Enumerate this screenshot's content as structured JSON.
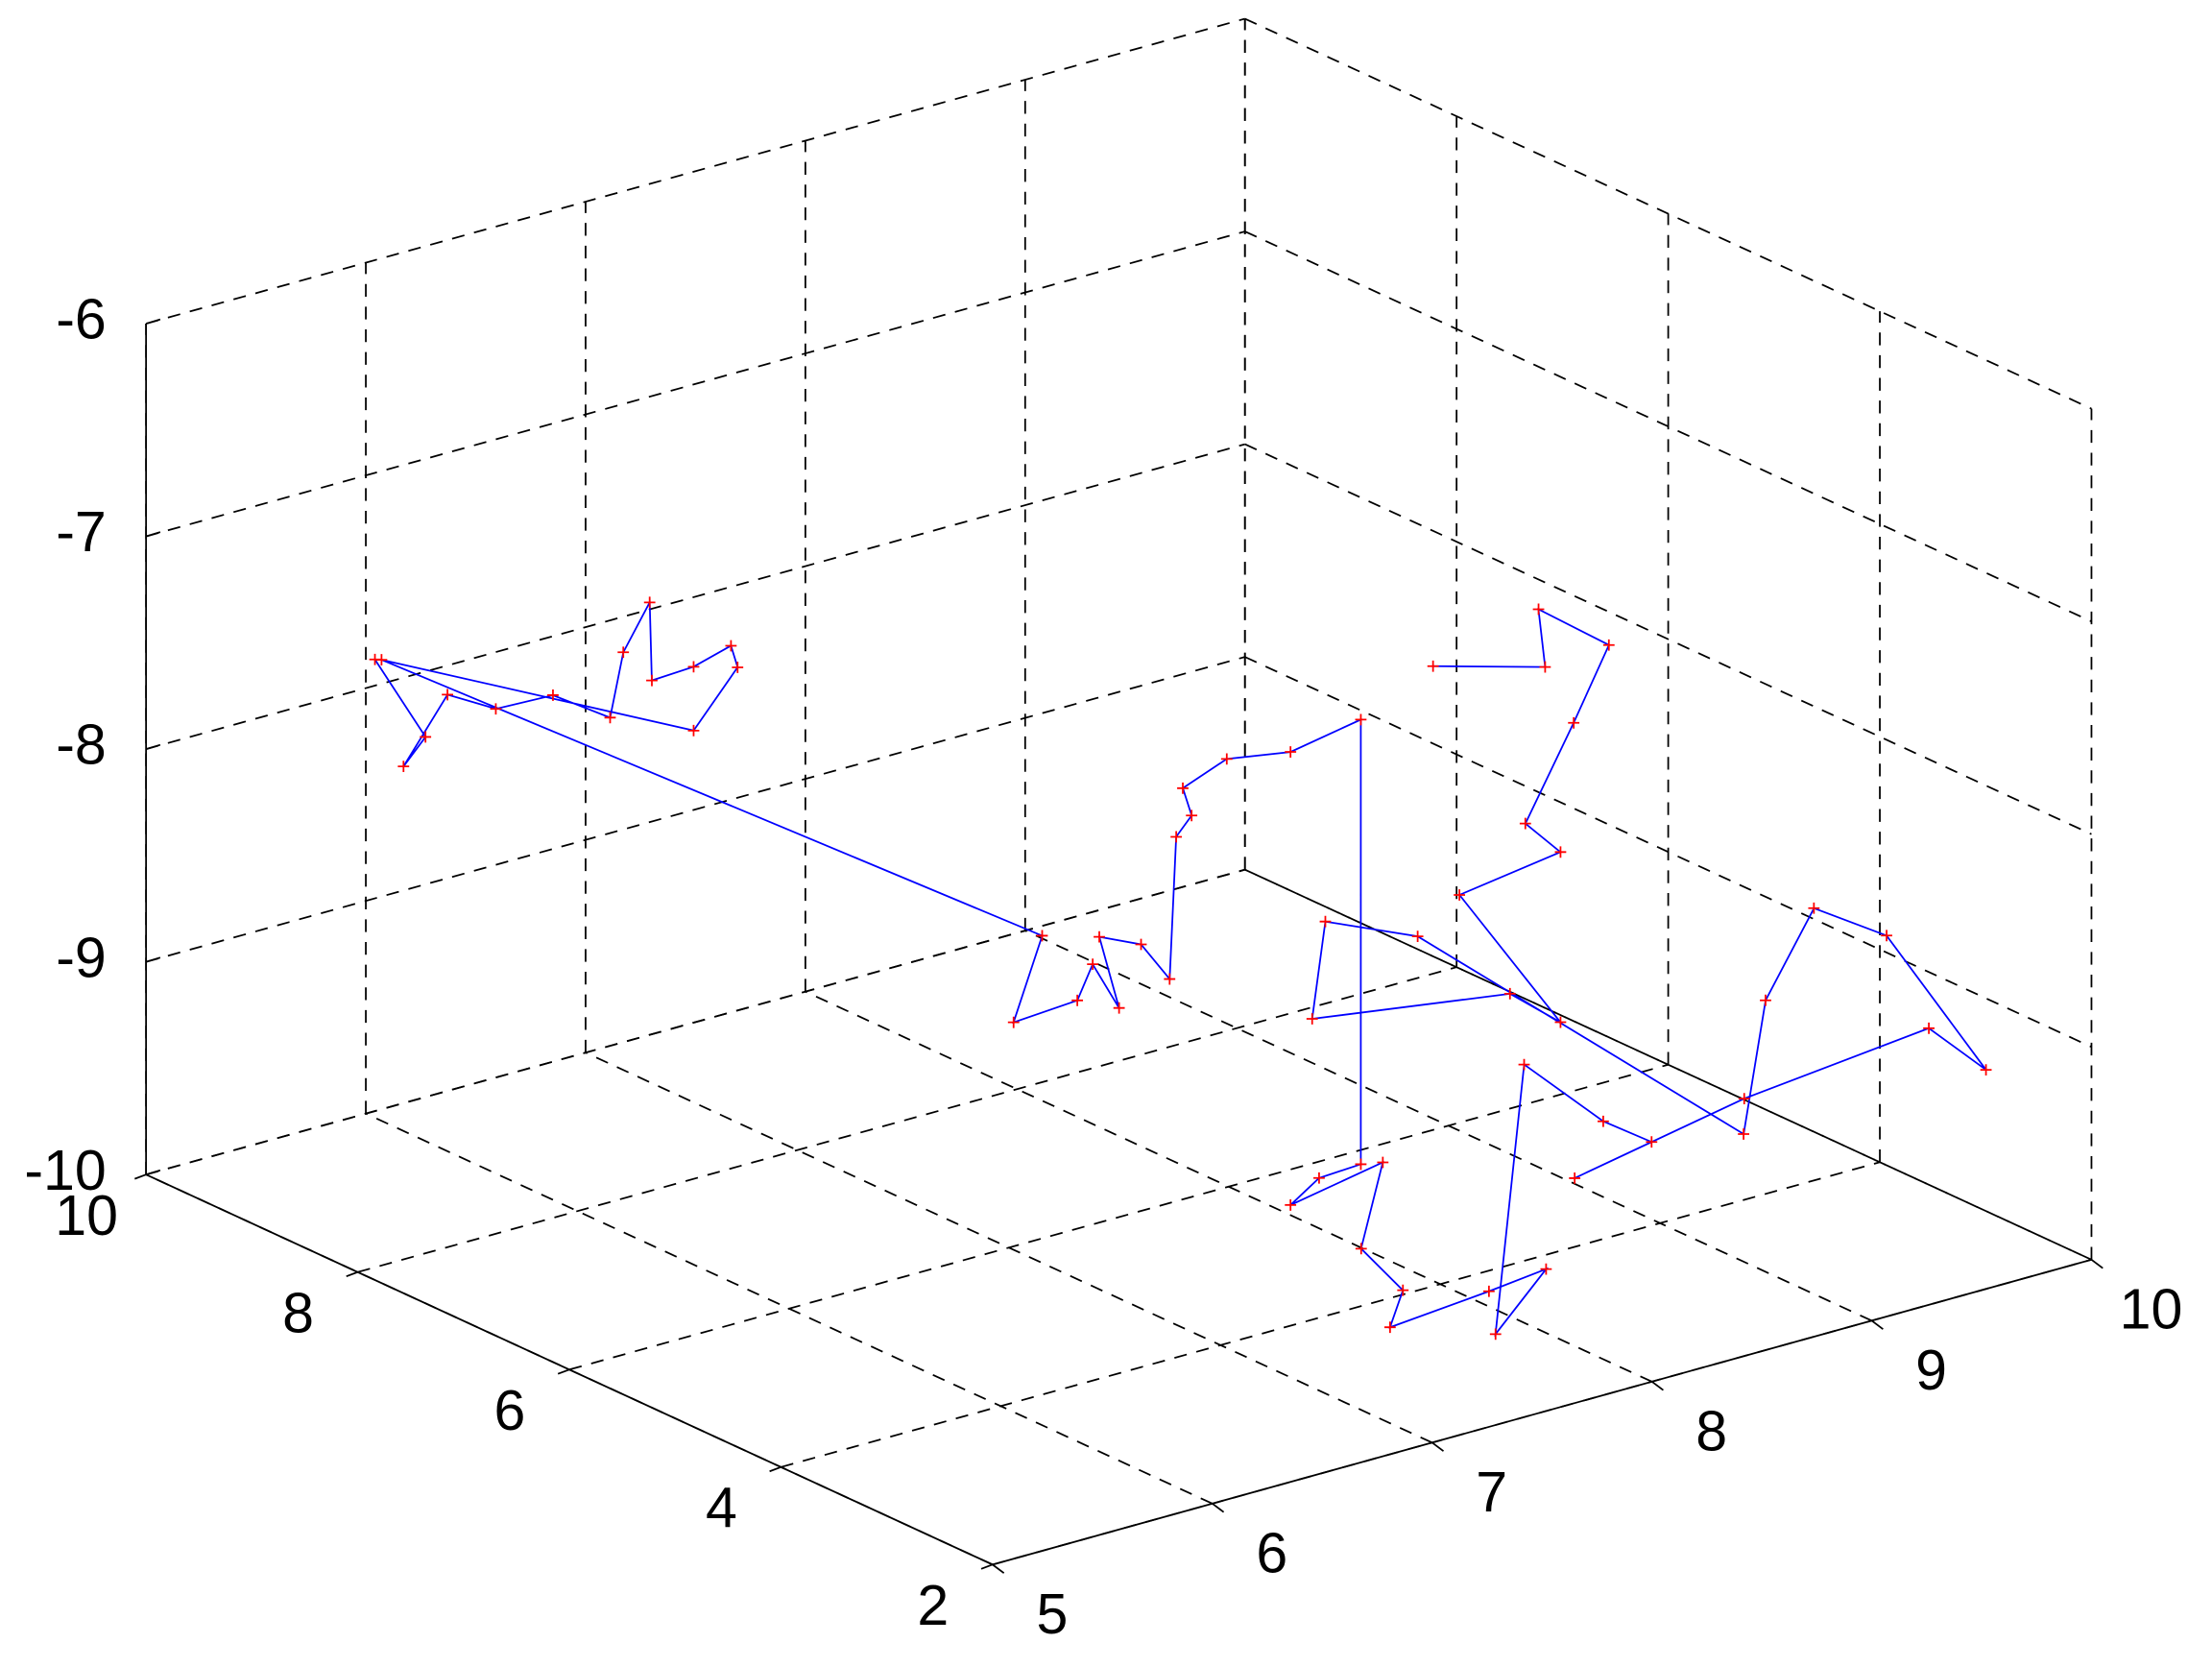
{
  "chart_data": {
    "type": "line3d",
    "x": [
      5.56,
      5.79,
      5.69,
      5.89,
      6.11,
      6.37,
      6.63,
      6.69,
      6.81,
      6.82,
      7.01,
      7.18,
      7.21,
      7.01,
      5.59,
      6.67,
      6.54,
      6.83,
      6.9,
      7.02,
      6.93,
      7.12,
      7.25,
      7.28,
      7.35,
      7.31,
      7.51,
      7.8,
      8.12,
      8.12,
      7.93,
      7.8,
      8.22,
      7.64,
      7.83,
      7.29,
      7.74,
      8.0,
      7.77,
      7.9,
      8.26,
      8.48,
      8.13,
      8.42,
      9.26,
      9.52,
      9.79,
      9.7,
      9.48,
      9.38,
      8.86,
      8.44,
      8.38,
      9.28,
      9.51,
      9.05,
      9.51,
      9.35,
      9.57,
      9.73,
      9.41,
      9.44,
      8.93
    ],
    "y": [
      9,
      9,
      9,
      9,
      9,
      9,
      9,
      9,
      9,
      9,
      9,
      9,
      9,
      9,
      9,
      5,
      5,
      5,
      5,
      5,
      5,
      5,
      5,
      5,
      5,
      5,
      5,
      5,
      5,
      5,
      5,
      5,
      5,
      4,
      4,
      3,
      3,
      3,
      3,
      3,
      3,
      3,
      3,
      2,
      2,
      2,
      3.5,
      4,
      4,
      4,
      6,
      6,
      6,
      6,
      6,
      6,
      6,
      6,
      6,
      6,
      6,
      6,
      6
    ],
    "z": [
      -7.51,
      -7.94,
      -8.05,
      -7.77,
      -7.9,
      -7.91,
      -8.09,
      -7.8,
      -7.6,
      -7.97,
      -7.96,
      -7.91,
      -8.02,
      -8.26,
      -7.52,
      -8.21,
      -8.58,
      -8.56,
      -8.41,
      -8.65,
      -8.29,
      -8.38,
      -8.58,
      -7.92,
      -7.84,
      -7.7,
      -7.62,
      -7.67,
      -7.61,
      -9.7,
      -9.71,
      -9.8,
      -9.72,
      -9.73,
      -9.98,
      -9.77,
      -9.73,
      -9.7,
      -9.94,
      -8.71,
      -9.08,
      -9.24,
      -9.31,
      -8.79,
      -8.7,
      -8.97,
      -8.76,
      -8.72,
      -9.09,
      -9.69,
      -9.07,
      -8.88,
      -9.32,
      -9.46,
      -9.66,
      -8.93,
      -8.86,
      -8.68,
      -8.27,
      -7.95,
      -7.69,
      -7.97,
      -7.82
    ],
    "line_color": "#0000ff",
    "marker_color": "#ff0000",
    "xlim": [
      5,
      10
    ],
    "xticks": [
      5,
      6,
      7,
      8,
      9,
      10
    ],
    "ylim": [
      2,
      10
    ],
    "yticks": [
      2,
      4,
      6,
      8,
      10
    ],
    "zlim": [
      -10,
      -6
    ],
    "zticks": [
      -10,
      -9,
      -8,
      -7,
      -6
    ],
    "grid": true
  }
}
